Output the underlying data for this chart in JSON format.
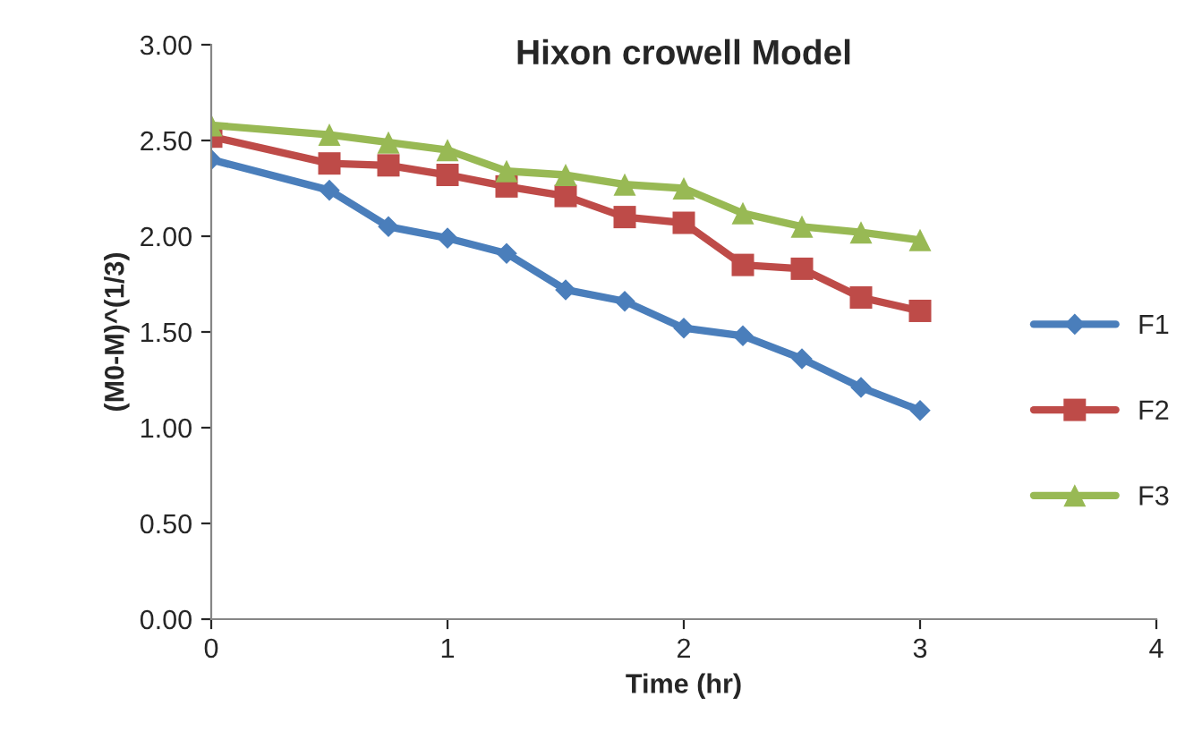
{
  "chart_data": {
    "type": "line",
    "title": "Hixon crowell Model",
    "xlabel": "Time (hr)",
    "ylabel": "(M0-M)^(1/3)",
    "x": [
      0,
      0.5,
      0.75,
      1,
      1.25,
      1.5,
      1.75,
      2,
      2.25,
      2.5,
      2.75,
      3
    ],
    "series": [
      {
        "name": "F1",
        "color": "#4a7ebb",
        "marker": "diamond",
        "values": [
          2.4,
          2.24,
          2.05,
          1.99,
          1.91,
          1.72,
          1.66,
          1.52,
          1.48,
          1.36,
          1.21,
          1.09
        ]
      },
      {
        "name": "F2",
        "color": "#be4b48",
        "marker": "square",
        "values": [
          2.52,
          2.38,
          2.37,
          2.32,
          2.26,
          2.21,
          2.1,
          2.07,
          1.85,
          1.83,
          1.68,
          1.61
        ]
      },
      {
        "name": "F3",
        "color": "#98b954",
        "marker": "triangle",
        "values": [
          2.58,
          2.53,
          2.49,
          2.45,
          2.34,
          2.32,
          2.27,
          2.25,
          2.12,
          2.05,
          2.02,
          1.98
        ]
      }
    ],
    "xlim": [
      0,
      4
    ],
    "xticks": [
      0,
      1,
      2,
      3,
      4
    ],
    "ylim": [
      0,
      3
    ],
    "yticks": [
      {
        "value": 0,
        "label": "0.00"
      },
      {
        "value": 0.5,
        "label": "0.50"
      },
      {
        "value": 1,
        "label": "1.00"
      },
      {
        "value": 1.5,
        "label": "1.50"
      },
      {
        "value": 2,
        "label": "2.00"
      },
      {
        "value": 2.5,
        "label": "2.50"
      },
      {
        "value": 3,
        "label": "3.00"
      }
    ],
    "grid": false,
    "legend": "right",
    "line_style": "solid"
  }
}
